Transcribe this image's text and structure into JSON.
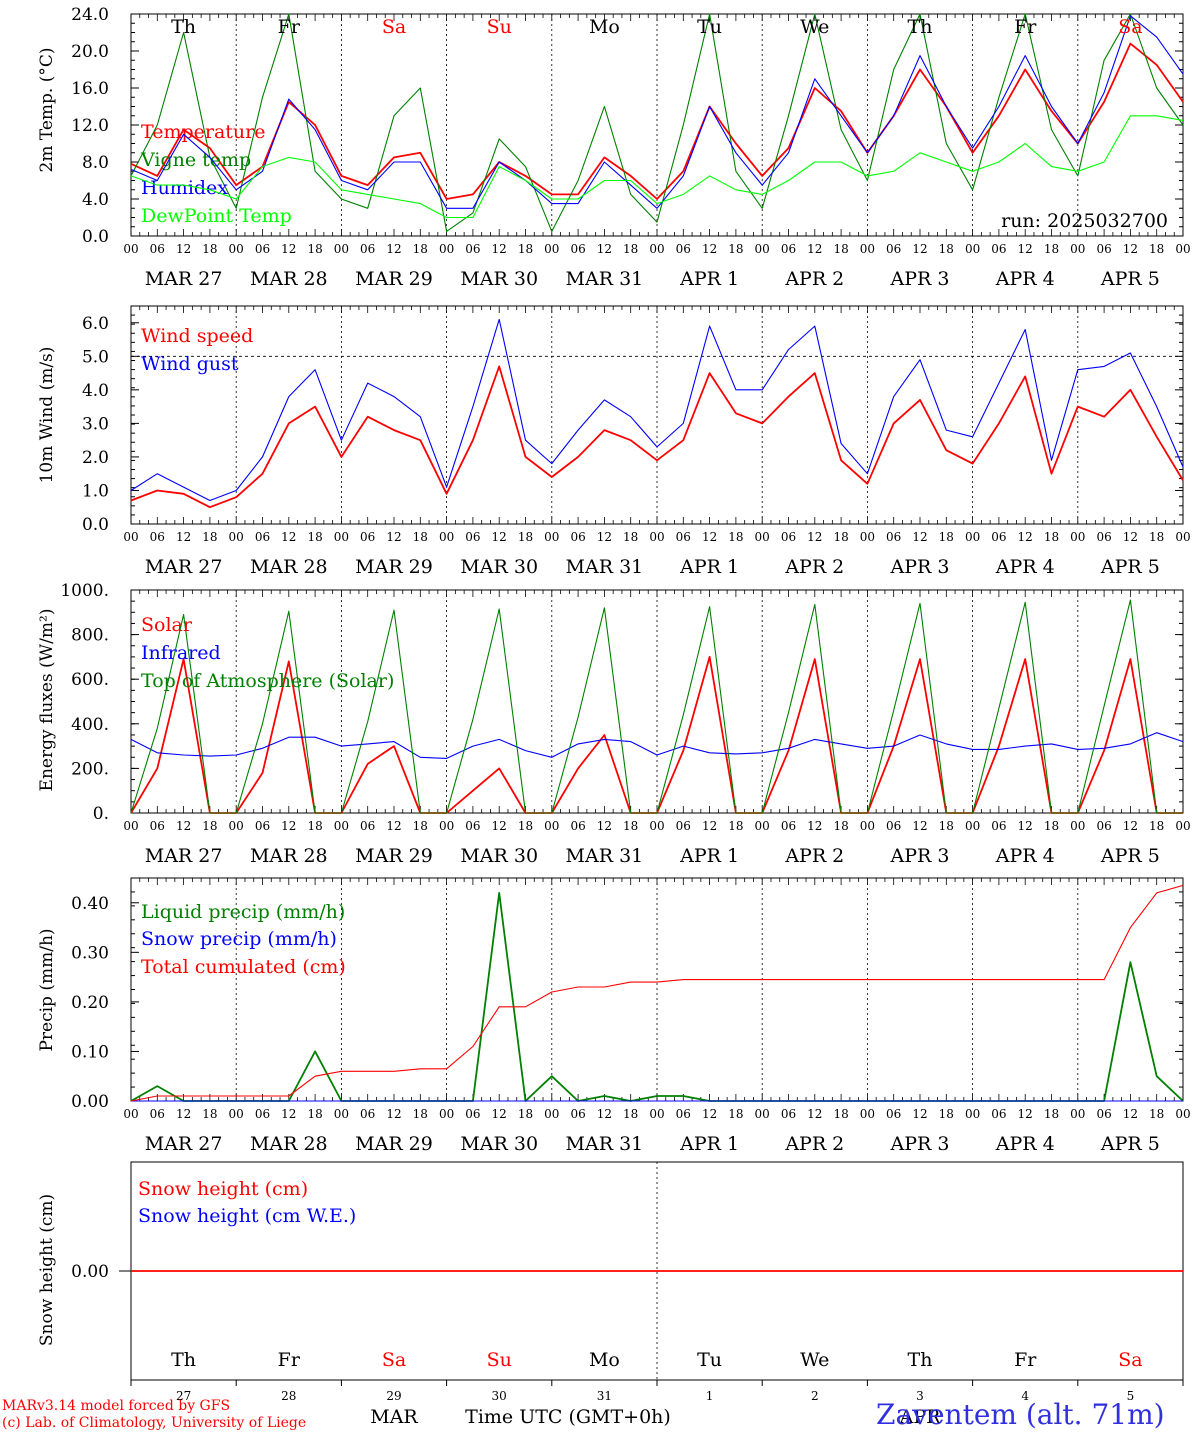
{
  "chart_data": [
    {
      "type": "line",
      "ylabel": "2m Temp. (°C)",
      "ylim": [
        0,
        24
      ],
      "yticks": [
        "0.0",
        "4.0",
        "8.0",
        "12.0",
        "16.0",
        "20.0",
        "24.0"
      ],
      "run_label": "run: 2025032700",
      "x_hours": [
        0,
        6,
        12,
        18,
        24,
        30,
        36,
        42,
        48,
        54,
        60,
        66,
        72,
        78,
        84,
        90,
        96,
        102,
        108,
        114,
        120,
        126,
        132,
        138,
        144,
        150,
        156,
        162,
        168,
        174,
        180,
        186,
        192,
        198,
        204,
        210,
        216,
        222,
        228,
        234,
        240
      ],
      "series": [
        {
          "name": "Temperature",
          "color": "#ff0000",
          "values": [
            7.8,
            6.5,
            11.5,
            9.5,
            5.5,
            7.5,
            14.5,
            12.0,
            6.5,
            5.5,
            8.5,
            9.0,
            4.0,
            4.5,
            8.0,
            6.5,
            4.5,
            4.5,
            8.5,
            6.5,
            4.0,
            7.0,
            14.0,
            10.0,
            6.5,
            9.5,
            16.0,
            13.5,
            9.0,
            13.0,
            18.0,
            14.0,
            9.0,
            13.0,
            18.0,
            13.5,
            10.0,
            14.5,
            20.8,
            18.5,
            14.5
          ]
        },
        {
          "name": "Vigne temp",
          "color": "#008000",
          "values": [
            6.5,
            12.0,
            22.0,
            8.5,
            3.0,
            15.0,
            24.0,
            7.0,
            4.0,
            3.0,
            13.0,
            16.0,
            0.5,
            2.5,
            10.5,
            7.5,
            0.5,
            6.0,
            14.0,
            4.5,
            1.5,
            12.0,
            24.0,
            7.0,
            3.0,
            13.0,
            24.0,
            11.5,
            6.0,
            18.0,
            24.0,
            10.0,
            5.0,
            15.0,
            24.0,
            11.5,
            6.5,
            19.0,
            24.0,
            16.0,
            12.0
          ]
        },
        {
          "name": "Humidex",
          "color": "#0000ff",
          "values": [
            7.2,
            6.0,
            11.0,
            8.5,
            5.0,
            7.0,
            14.8,
            11.5,
            6.0,
            5.0,
            8.0,
            8.0,
            3.0,
            3.0,
            8.0,
            6.0,
            3.5,
            3.5,
            8.0,
            5.5,
            3.0,
            6.5,
            14.0,
            9.0,
            5.5,
            9.0,
            17.0,
            13.0,
            9.0,
            13.0,
            19.5,
            14.0,
            9.5,
            14.0,
            19.5,
            14.0,
            10.0,
            15.5,
            23.8,
            21.5,
            17.5
          ]
        },
        {
          "name": "DewPoint Temp",
          "color": "#00ff00",
          "values": [
            6.5,
            5.5,
            5.5,
            5.0,
            4.0,
            7.5,
            8.5,
            8.0,
            5.0,
            4.5,
            4.0,
            3.5,
            2.0,
            2.0,
            7.5,
            6.0,
            4.0,
            4.0,
            6.0,
            6.0,
            3.5,
            4.5,
            6.5,
            5.0,
            4.5,
            6.0,
            8.0,
            8.0,
            6.5,
            7.0,
            9.0,
            8.0,
            7.0,
            8.0,
            10.0,
            7.5,
            7.0,
            8.0,
            13.0,
            13.0,
            12.5
          ]
        }
      ]
    },
    {
      "type": "line",
      "ylabel": "10m Wind (m/s)",
      "ylim": [
        0,
        6.5
      ],
      "yticks": [
        "0.0",
        "1.0",
        "2.0",
        "3.0",
        "4.0",
        "5.0",
        "6.0"
      ],
      "reference_line": 5.0,
      "x_hours": [
        0,
        6,
        12,
        18,
        24,
        30,
        36,
        42,
        48,
        54,
        60,
        66,
        72,
        78,
        84,
        90,
        96,
        102,
        108,
        114,
        120,
        126,
        132,
        138,
        144,
        150,
        156,
        162,
        168,
        174,
        180,
        186,
        192,
        198,
        204,
        210,
        216,
        222,
        228,
        234,
        240
      ],
      "series": [
        {
          "name": "Wind speed",
          "color": "#ff0000",
          "values": [
            0.7,
            1.0,
            0.9,
            0.5,
            0.8,
            1.5,
            3.0,
            3.5,
            2.0,
            3.2,
            2.8,
            2.5,
            0.9,
            2.5,
            4.7,
            2.0,
            1.4,
            2.0,
            2.8,
            2.5,
            1.9,
            2.5,
            4.5,
            3.3,
            3.0,
            3.8,
            4.5,
            1.9,
            1.2,
            3.0,
            3.7,
            2.2,
            1.8,
            3.0,
            4.4,
            1.5,
            3.5,
            3.2,
            4.0,
            2.6,
            1.3
          ]
        },
        {
          "name": "Wind gust",
          "color": "#0000ff",
          "values": [
            1.0,
            1.5,
            1.1,
            0.7,
            1.0,
            2.0,
            3.8,
            4.6,
            2.5,
            4.2,
            3.8,
            3.2,
            1.1,
            3.5,
            6.1,
            2.5,
            1.8,
            2.8,
            3.7,
            3.2,
            2.3,
            3.0,
            5.9,
            4.0,
            4.0,
            5.2,
            5.9,
            2.4,
            1.5,
            3.8,
            4.9,
            2.8,
            2.6,
            4.2,
            5.8,
            1.9,
            4.6,
            4.7,
            5.1,
            3.5,
            1.7
          ]
        }
      ]
    },
    {
      "type": "line",
      "ylabel": "Energy fluxes (W/m²)",
      "ylim": [
        0,
        1000
      ],
      "yticks": [
        "0.",
        "200.",
        "400.",
        "600.",
        "800.",
        "1000."
      ],
      "x_hours": [
        0,
        6,
        12,
        18,
        24,
        30,
        36,
        42,
        48,
        54,
        60,
        66,
        72,
        78,
        84,
        90,
        96,
        102,
        108,
        114,
        120,
        126,
        132,
        138,
        144,
        150,
        156,
        162,
        168,
        174,
        180,
        186,
        192,
        198,
        204,
        210,
        216,
        222,
        228,
        234,
        240
      ],
      "series": [
        {
          "name": "Solar",
          "color": "#ff0000",
          "values": [
            0,
            200,
            690,
            0,
            0,
            180,
            680,
            0,
            0,
            220,
            300,
            0,
            0,
            100,
            200,
            0,
            0,
            200,
            350,
            0,
            0,
            280,
            700,
            0,
            0,
            280,
            690,
            0,
            0,
            300,
            690,
            0,
            0,
            300,
            690,
            0,
            0,
            280,
            690,
            0,
            0
          ]
        },
        {
          "name": "Infrared",
          "color": "#0000ff",
          "values": [
            330,
            270,
            260,
            255,
            260,
            290,
            340,
            340,
            300,
            310,
            320,
            250,
            245,
            300,
            330,
            280,
            250,
            310,
            330,
            320,
            260,
            300,
            270,
            265,
            270,
            290,
            330,
            310,
            290,
            300,
            350,
            310,
            285,
            285,
            300,
            310,
            285,
            290,
            310,
            360,
            320
          ]
        },
        {
          "name": "Top of Atmosphere (Solar)",
          "color": "#008000",
          "values": [
            0,
            380,
            890,
            0,
            0,
            400,
            905,
            0,
            0,
            410,
            910,
            0,
            0,
            420,
            915,
            0,
            0,
            430,
            920,
            0,
            0,
            440,
            925,
            0,
            0,
            450,
            935,
            0,
            0,
            460,
            940,
            0,
            0,
            470,
            945,
            0,
            0,
            480,
            955,
            0,
            0
          ]
        }
      ]
    },
    {
      "type": "line",
      "ylabel": "Precip (mm/h)",
      "ylim": [
        0,
        0.45
      ],
      "yticks": [
        "0.00",
        "0.10",
        "0.20",
        "0.30",
        "0.40"
      ],
      "x_hours": [
        0,
        6,
        12,
        18,
        24,
        30,
        36,
        42,
        48,
        54,
        60,
        66,
        72,
        78,
        84,
        90,
        96,
        102,
        108,
        114,
        120,
        126,
        132,
        138,
        144,
        150,
        156,
        162,
        168,
        174,
        180,
        186,
        192,
        198,
        204,
        210,
        216,
        222,
        228,
        234,
        240
      ],
      "series": [
        {
          "name": "Liquid precip (mm/h)",
          "color": "#008000",
          "values": [
            0,
            0.03,
            0,
            0,
            0,
            0,
            0,
            0.1,
            0,
            0,
            0,
            0,
            0,
            0,
            0.42,
            0,
            0.05,
            0,
            0.01,
            0,
            0.01,
            0.01,
            0,
            0,
            0,
            0,
            0,
            0,
            0,
            0,
            0,
            0,
            0,
            0,
            0,
            0,
            0,
            0,
            0.28,
            0.05,
            0
          ]
        },
        {
          "name": "Snow precip (mm/h)",
          "color": "#0000ff",
          "values": [
            0,
            0,
            0,
            0,
            0,
            0,
            0,
            0,
            0,
            0,
            0,
            0,
            0,
            0,
            0,
            0,
            0,
            0,
            0,
            0,
            0,
            0,
            0,
            0,
            0,
            0,
            0,
            0,
            0,
            0,
            0,
            0,
            0,
            0,
            0,
            0,
            0,
            0,
            0,
            0,
            0
          ]
        },
        {
          "name": "Total cumulated (cm)",
          "color": "#ff0000",
          "values": [
            0,
            0.01,
            0.01,
            0.01,
            0.01,
            0.01,
            0.01,
            0.05,
            0.06,
            0.06,
            0.06,
            0.065,
            0.065,
            0.11,
            0.19,
            0.19,
            0.22,
            0.23,
            0.23,
            0.24,
            0.24,
            0.245,
            0.245,
            0.245,
            0.245,
            0.245,
            0.245,
            0.245,
            0.245,
            0.245,
            0.245,
            0.245,
            0.245,
            0.245,
            0.245,
            0.245,
            0.245,
            0.245,
            0.35,
            0.42,
            0.435
          ]
        }
      ]
    },
    {
      "type": "line",
      "ylabel": "Snow height (cm)",
      "yticks": [
        "0.00"
      ],
      "series": [
        {
          "name": "Snow height (cm)",
          "color": "#ff0000",
          "values": [
            0,
            0
          ]
        },
        {
          "name": "Snow height (cm W.E.)",
          "color": "#0000ff",
          "values": [
            0,
            0
          ]
        }
      ]
    }
  ],
  "hour_ticks": [
    "00",
    "06",
    "12",
    "18"
  ],
  "days": [
    {
      "weekday": "Th",
      "date": "MAR 27",
      "daynum": "27",
      "weekend": false
    },
    {
      "weekday": "Fr",
      "date": "MAR 28",
      "daynum": "28",
      "weekend": false
    },
    {
      "weekday": "Sa",
      "date": "MAR 29",
      "daynum": "29",
      "weekend": true
    },
    {
      "weekday": "Su",
      "date": "MAR 30",
      "daynum": "30",
      "weekend": true
    },
    {
      "weekday": "Mo",
      "date": "MAR 31",
      "daynum": "31",
      "weekend": false
    },
    {
      "weekday": "Tu",
      "date": "APR  1",
      "daynum": "1",
      "weekend": false
    },
    {
      "weekday": "We",
      "date": "APR  2",
      "daynum": "2",
      "weekend": false
    },
    {
      "weekday": "Th",
      "date": "APR  3",
      "daynum": "3",
      "weekend": false
    },
    {
      "weekday": "Fr",
      "date": "APR  4",
      "daynum": "4",
      "weekend": false
    },
    {
      "weekday": "Sa",
      "date": "APR  5",
      "daynum": "5",
      "weekend": true
    }
  ],
  "months": {
    "mar": "MAR",
    "apr": "APR"
  },
  "xlabel": "Time UTC (GMT+0h)",
  "credit_line1": "MARv3.14 model forced by GFS",
  "credit_line2": "(c) Lab. of Climatology, University of Liege",
  "station": "Zaventem (alt. 71m)",
  "colors": {
    "weekend": "#ff0000",
    "weekday": "#000000"
  }
}
